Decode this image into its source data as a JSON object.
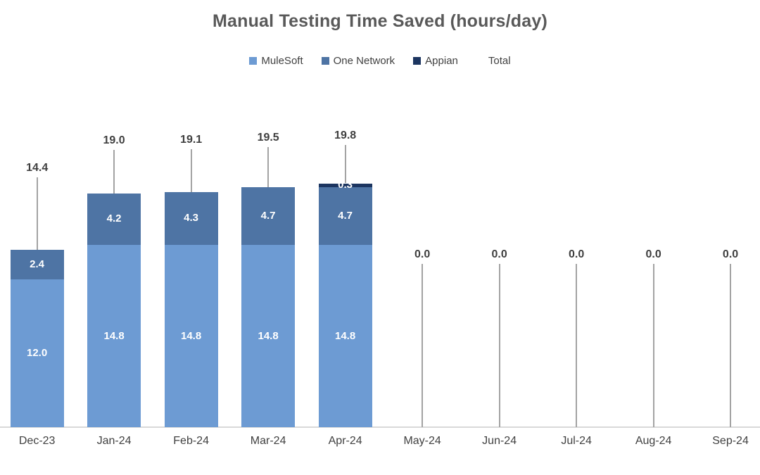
{
  "chart_data": {
    "type": "bar",
    "stacked": true,
    "title": "Manual Testing Time Saved (hours/day)",
    "categories": [
      "Dec-23",
      "Jan-24",
      "Feb-24",
      "Mar-24",
      "Apr-24",
      "May-24",
      "Jun-24",
      "Jul-24",
      "Aug-24",
      "Sep-24"
    ],
    "series": [
      {
        "name": "MuleSoft",
        "color": "#6D9BD3",
        "values": [
          12.0,
          14.8,
          14.8,
          14.8,
          14.8,
          0,
          0,
          0,
          0,
          0
        ]
      },
      {
        "name": "One Network",
        "color": "#4E74A4",
        "values": [
          2.4,
          4.2,
          4.3,
          4.7,
          4.7,
          0,
          0,
          0,
          0,
          0
        ]
      },
      {
        "name": "Appian",
        "color": "#1C3560",
        "values": [
          0,
          0,
          0,
          0,
          0.3,
          0,
          0,
          0,
          0,
          0
        ]
      }
    ],
    "totals": {
      "name": "Total",
      "values": [
        14.4,
        19.0,
        19.1,
        19.5,
        19.8,
        0.0,
        0.0,
        0.0,
        0.0,
        0.0
      ]
    },
    "colors": {
      "title_text": "#595959",
      "legend_text": "#404040",
      "segment_label_text": "#ffffff",
      "total_label_text": "#3f3f3f",
      "category_label_text": "#404040",
      "leader_line": "#a3a3a3",
      "axis_line": "#d9d9d9"
    },
    "layout_hints": {
      "legend_position": "top",
      "y_axis_visible": false,
      "gridlines": false,
      "value_format_decimals": 1
    }
  }
}
